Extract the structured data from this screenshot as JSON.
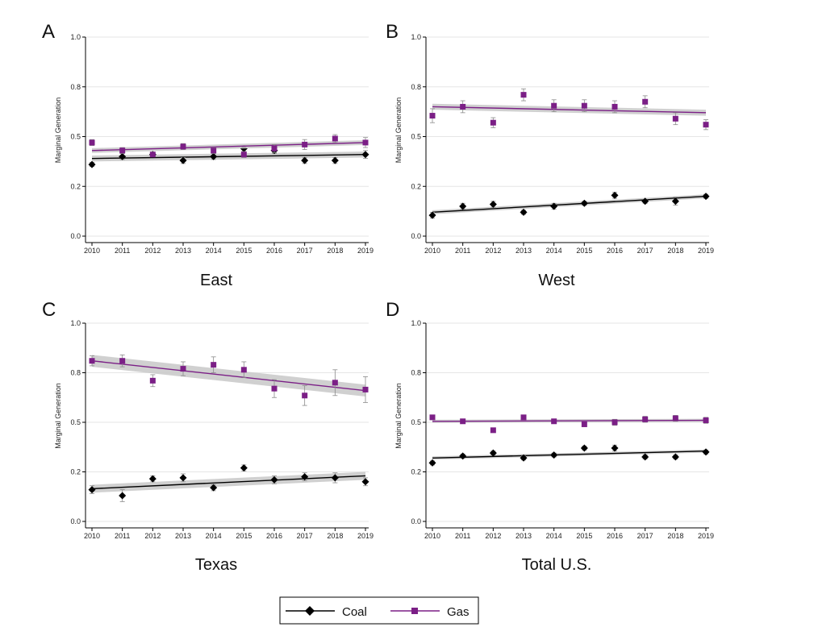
{
  "chart_data": [
    {
      "type": "scatter",
      "panel_letter": "A",
      "title": "East",
      "ylabel": "Marginal Generation",
      "xlabel": "",
      "x": [
        "2010",
        "2011",
        "2012",
        "2013",
        "2014",
        "2015",
        "2016",
        "2017",
        "2018",
        "2019"
      ],
      "ylim": [
        0,
        1
      ],
      "yticks": [
        "0.0",
        "0.2",
        "0.5",
        "0.8",
        "1.0"
      ],
      "ytick_values": [
        0,
        0.25,
        0.5,
        0.75,
        1.0
      ],
      "series": [
        {
          "name": "Coal",
          "color": "#000000",
          "marker": "diamond",
          "values": [
            0.36,
            0.4,
            0.41,
            0.38,
            0.4,
            0.44,
            0.43,
            0.38,
            0.38,
            0.41
          ],
          "err": [
            0.01,
            0.015,
            0.01,
            0.015,
            0.015,
            0.015,
            0.015,
            0.015,
            0.015,
            0.02
          ],
          "fit": [
            0.39,
            0.41
          ],
          "band": 0.015
        },
        {
          "name": "Gas",
          "color": "#7b1f86",
          "marker": "square",
          "values": [
            0.47,
            0.43,
            0.41,
            0.45,
            0.43,
            0.41,
            0.44,
            0.46,
            0.49,
            0.47
          ],
          "err": [
            0.015,
            0.015,
            0.01,
            0.015,
            0.015,
            0.015,
            0.02,
            0.025,
            0.02,
            0.025
          ],
          "fit": [
            0.43,
            0.47
          ],
          "band": 0.012
        }
      ]
    },
    {
      "type": "scatter",
      "panel_letter": "B",
      "title": "West",
      "ylabel": "Marginal Generation",
      "xlabel": "",
      "x": [
        "2010",
        "2011",
        "2012",
        "2013",
        "2014",
        "2015",
        "2016",
        "2017",
        "2018",
        "2019"
      ],
      "ylim": [
        0,
        1
      ],
      "yticks": [
        "0.0",
        "0.2",
        "0.5",
        "0.8",
        "1.0"
      ],
      "ytick_values": [
        0,
        0.25,
        0.5,
        0.75,
        1.0
      ],
      "series": [
        {
          "name": "Coal",
          "color": "#000000",
          "marker": "diamond",
          "values": [
            0.105,
            0.15,
            0.16,
            0.12,
            0.15,
            0.165,
            0.205,
            0.175,
            0.175,
            0.2
          ],
          "err": [
            0.015,
            0.015,
            0.015,
            0.01,
            0.015,
            0.01,
            0.015,
            0.01,
            0.02,
            0.01
          ],
          "fit": [
            0.12,
            0.2
          ],
          "band": 0.01
        },
        {
          "name": "Gas",
          "color": "#7b1f86",
          "marker": "square",
          "values": [
            0.605,
            0.65,
            0.57,
            0.71,
            0.655,
            0.655,
            0.65,
            0.675,
            0.59,
            0.56
          ],
          "err": [
            0.035,
            0.03,
            0.025,
            0.03,
            0.03,
            0.03,
            0.03,
            0.03,
            0.03,
            0.025
          ],
          "fit": [
            0.65,
            0.62
          ],
          "band": 0.015
        }
      ]
    },
    {
      "type": "scatter",
      "panel_letter": "C",
      "title": "Texas",
      "ylabel": "Marginal Generation",
      "xlabel": "",
      "x": [
        "2010",
        "2011",
        "2012",
        "2013",
        "2014",
        "2015",
        "2016",
        "2017",
        "2018",
        "2019"
      ],
      "ylim": [
        0,
        1
      ],
      "yticks": [
        "0.0",
        "0.2",
        "0.5",
        "0.8",
        "1.0"
      ],
      "ytick_values": [
        0,
        0.25,
        0.5,
        0.75,
        1.0
      ],
      "series": [
        {
          "name": "Coal",
          "color": "#000000",
          "marker": "diamond",
          "values": [
            0.16,
            0.13,
            0.215,
            0.22,
            0.17,
            0.27,
            0.21,
            0.225,
            0.22,
            0.2
          ],
          "err": [
            0.02,
            0.03,
            0.015,
            0.02,
            0.015,
            0.015,
            0.02,
            0.02,
            0.025,
            0.02
          ],
          "fit": [
            0.165,
            0.23
          ],
          "band": 0.02
        },
        {
          "name": "Gas",
          "color": "#7b1f86",
          "marker": "square",
          "values": [
            0.81,
            0.81,
            0.71,
            0.77,
            0.79,
            0.765,
            0.67,
            0.635,
            0.7,
            0.665
          ],
          "err": [
            0.025,
            0.03,
            0.03,
            0.035,
            0.04,
            0.04,
            0.045,
            0.05,
            0.065,
            0.065
          ],
          "fit": [
            0.81,
            0.66
          ],
          "band": 0.03
        }
      ]
    },
    {
      "type": "scatter",
      "panel_letter": "D",
      "title": "Total U.S.",
      "ylabel": "Marginal Generation",
      "xlabel": "",
      "x": [
        "2010",
        "2011",
        "2012",
        "2013",
        "2014",
        "2015",
        "2016",
        "2017",
        "2018",
        "2019"
      ],
      "ylim": [
        0,
        1
      ],
      "yticks": [
        "0.0",
        "0.2",
        "0.5",
        "0.8",
        "1.0"
      ],
      "ytick_values": [
        0,
        0.25,
        0.5,
        0.75,
        1.0
      ],
      "series": [
        {
          "name": "Coal",
          "color": "#000000",
          "marker": "diamond",
          "values": [
            0.295,
            0.33,
            0.345,
            0.32,
            0.335,
            0.37,
            0.37,
            0.325,
            0.325,
            0.35
          ],
          "err": [
            0.01,
            0.01,
            0.01,
            0.01,
            0.01,
            0.01,
            0.015,
            0.01,
            0.01,
            0.01
          ],
          "fit": [
            0.32,
            0.355
          ],
          "band": 0.008
        },
        {
          "name": "Gas",
          "color": "#7b1f86",
          "marker": "square",
          "values": [
            0.525,
            0.505,
            0.46,
            0.525,
            0.505,
            0.49,
            0.5,
            0.515,
            0.52,
            0.51
          ],
          "err": [
            0.01,
            0.01,
            0.01,
            0.01,
            0.01,
            0.01,
            0.015,
            0.015,
            0.015,
            0.015
          ],
          "fit": [
            0.505,
            0.51
          ],
          "band": 0.008
        }
      ]
    }
  ],
  "legend": {
    "placement": "bottom-center",
    "entries": [
      {
        "label": "Coal",
        "color": "#000000",
        "marker": "diamond"
      },
      {
        "label": "Gas",
        "color": "#7b1f86",
        "marker": "square"
      }
    ]
  }
}
